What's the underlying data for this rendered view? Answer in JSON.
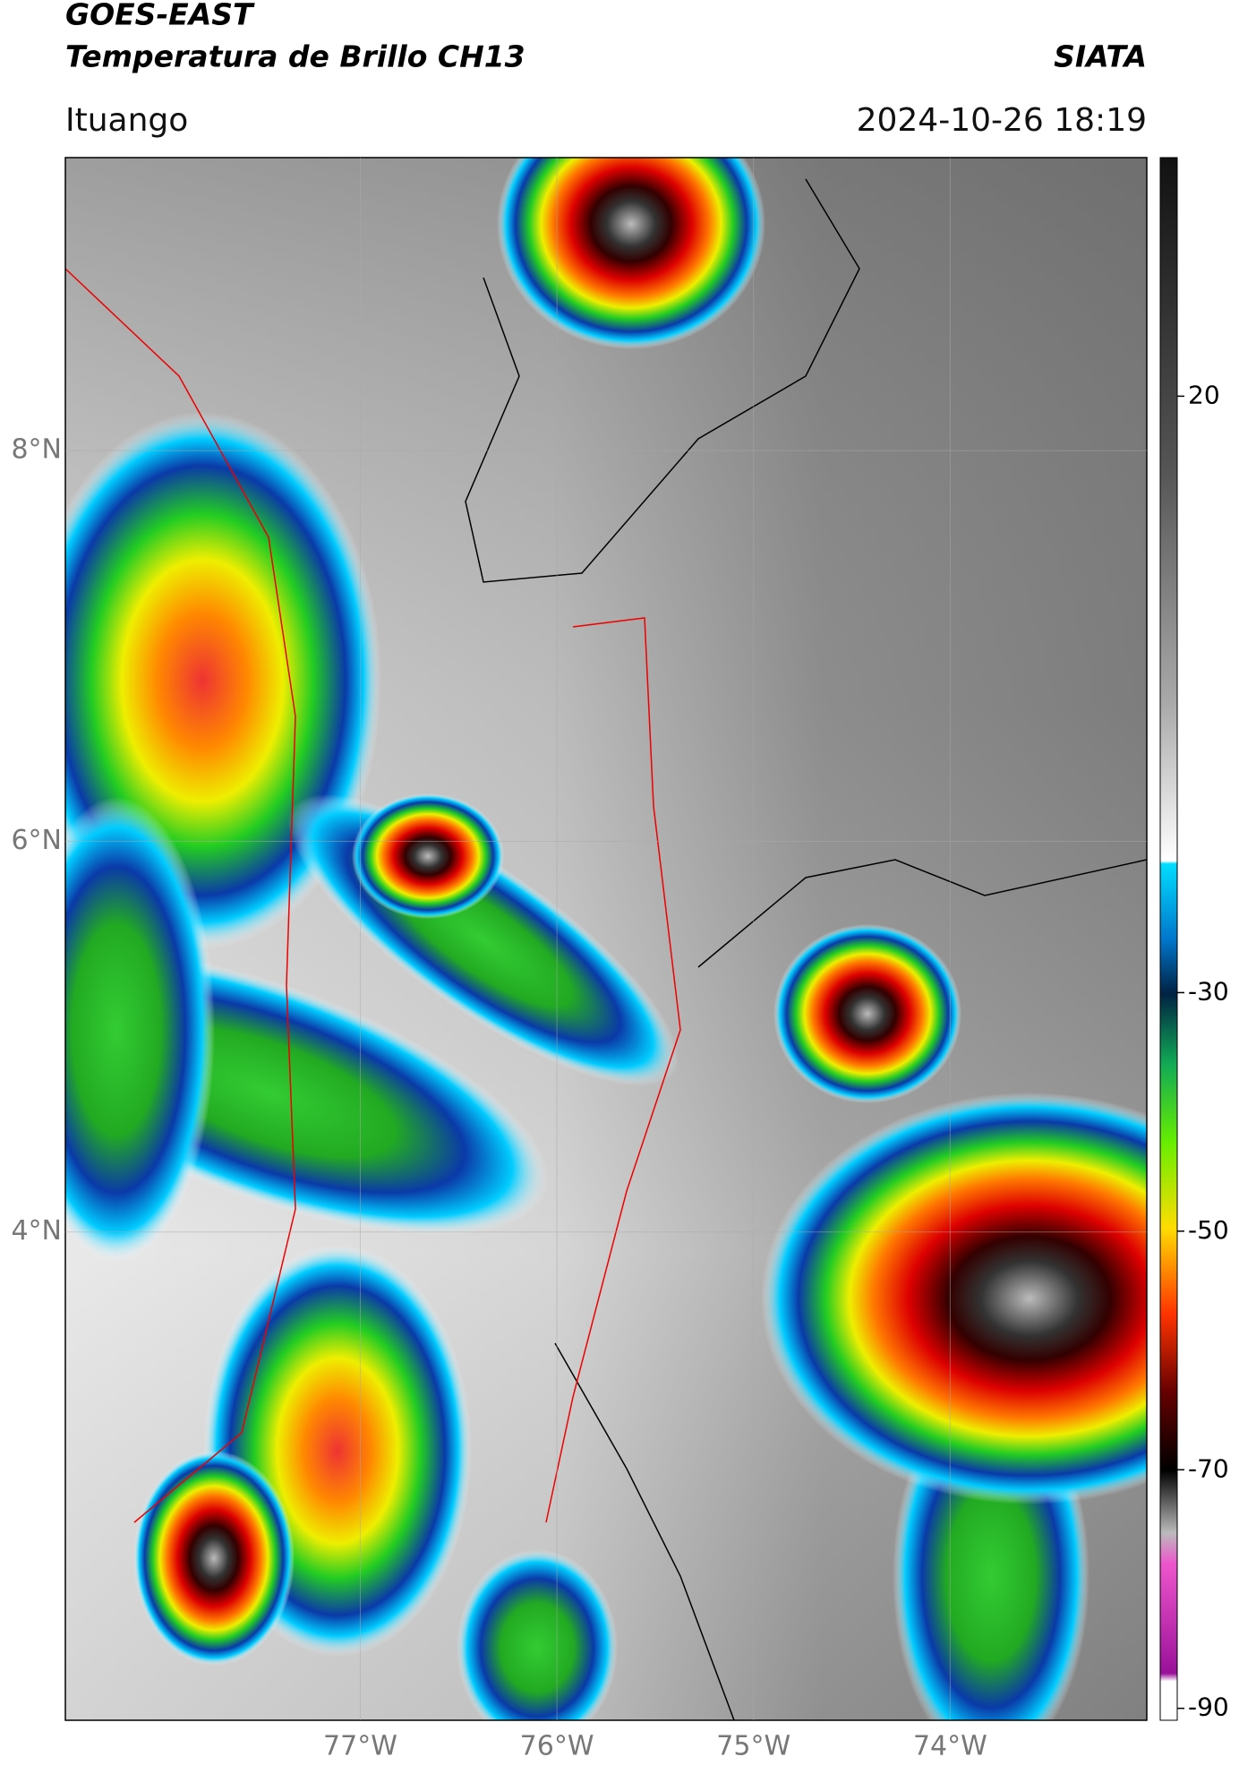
{
  "header": {
    "title": "GOES-EAST",
    "subtitle": "Temperatura de Brillo CH13",
    "source": "SIATA",
    "location": "Ituango",
    "datetime": "2024-10-26 18:19"
  },
  "map": {
    "xlim": [
      -78.5,
      -73.0
    ],
    "ylim": [
      1.5,
      9.5
    ],
    "xticks": [
      {
        "value": -77,
        "label": "77°W"
      },
      {
        "value": -76,
        "label": "76°W"
      },
      {
        "value": -75,
        "label": "75°W"
      },
      {
        "value": -74,
        "label": "74°W"
      }
    ],
    "yticks": [
      {
        "value": 8,
        "label": "8°N"
      },
      {
        "value": 6,
        "label": "6°N"
      },
      {
        "value": 4,
        "label": "4°N"
      }
    ],
    "grid": true
  },
  "colorbar": {
    "clim": [
      -91,
      40
    ],
    "ticks": [
      20,
      -30,
      -50,
      -70,
      -90
    ]
  }
}
